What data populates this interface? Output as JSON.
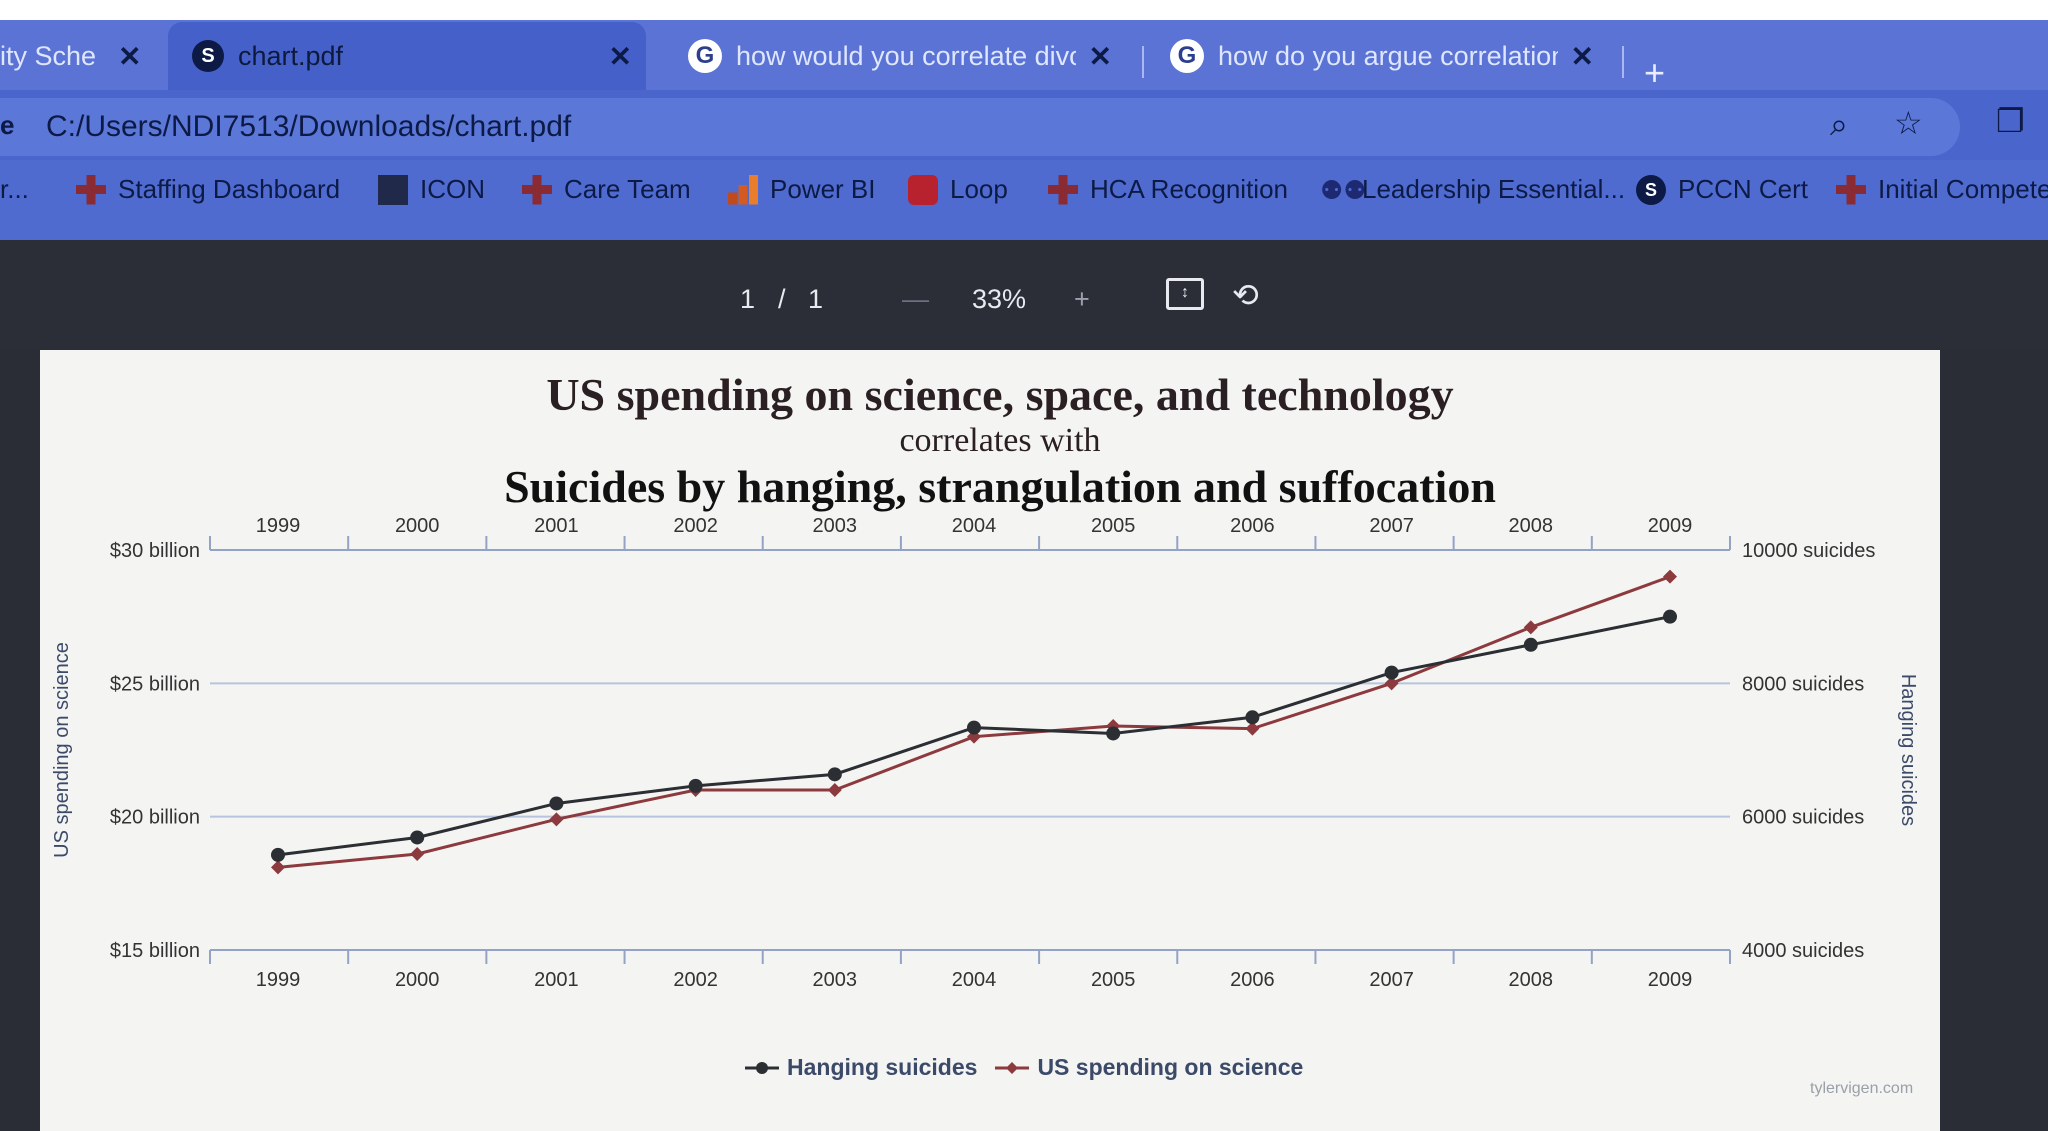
{
  "browser": {
    "tabs": [
      {
        "title": "ity Sche",
        "close": "✕"
      },
      {
        "title": "chart.pdf",
        "close": "✕",
        "active": true
      },
      {
        "title": "how would you correlate divorc",
        "close": "✕"
      },
      {
        "title": "how do you argue correlation b",
        "close": "✕"
      }
    ],
    "new_tab": "+",
    "address": {
      "scheme": "e",
      "url": "C:/Users/NDI7513/Downloads/chart.pdf"
    },
    "bookmarks": [
      {
        "label": "r...",
        "icon": "folder-icon"
      },
      {
        "label": "Staffing Dashboard",
        "icon": "red-cross-icon"
      },
      {
        "label": "ICON",
        "icon": "icon-logo"
      },
      {
        "label": "Care Team",
        "icon": "red-cross-icon"
      },
      {
        "label": "Power BI",
        "icon": "power-bi-icon"
      },
      {
        "label": "Loop",
        "icon": "loop-icon"
      },
      {
        "label": "HCA Recognition",
        "icon": "red-cross-icon"
      },
      {
        "label": "Leadership Essential...",
        "icon": "people-icon"
      },
      {
        "label": "PCCN Cert",
        "icon": "s-icon"
      },
      {
        "label": "Initial Competen",
        "icon": "red-cross-icon"
      }
    ]
  },
  "pdf_viewer": {
    "page_current": "1",
    "page_sep": "/",
    "page_total": "1",
    "zoom_out": "—",
    "zoom": "33%",
    "zoom_in": "+"
  },
  "chart": {
    "title": "US spending on science, space, and technology",
    "subtitle": "correlates with",
    "title2": "Suicides by hanging, strangulation and suffocation",
    "watermark": "tylervigen.com",
    "colors": {
      "hanging": "#2b2e33",
      "spending": "#8c3a3e",
      "grid": "#b8c4dd"
    }
  },
  "chart_data": {
    "type": "line",
    "x": [
      "1999",
      "2000",
      "2001",
      "2002",
      "2003",
      "2004",
      "2005",
      "2006",
      "2007",
      "2008",
      "2009"
    ],
    "left_axis": {
      "label": "US spending on science",
      "ticks": [
        "$15 billion",
        "$20 billion",
        "$25 billion",
        "$30 billion"
      ],
      "tick_values": [
        15,
        20,
        25,
        30
      ],
      "range": [
        15,
        30
      ]
    },
    "right_axis": {
      "label": "Hanging suicides",
      "ticks": [
        "4000 suicides",
        "6000 suicides",
        "8000 suicides",
        "10000 suicides"
      ],
      "tick_values": [
        4000,
        6000,
        8000,
        10000
      ],
      "range": [
        4000,
        10000
      ]
    },
    "series": [
      {
        "name": "Hanging suicides",
        "axis": "right",
        "values": [
          5427,
          5688,
          6198,
          6462,
          6635,
          7336,
          7248,
          7491,
          8161,
          8578,
          9000
        ]
      },
      {
        "name": "US spending on science",
        "axis": "left",
        "values": [
          18.1,
          18.6,
          19.9,
          21.0,
          21.0,
          23.0,
          23.4,
          23.3,
          25.0,
          27.1,
          29.0
        ]
      }
    ]
  }
}
